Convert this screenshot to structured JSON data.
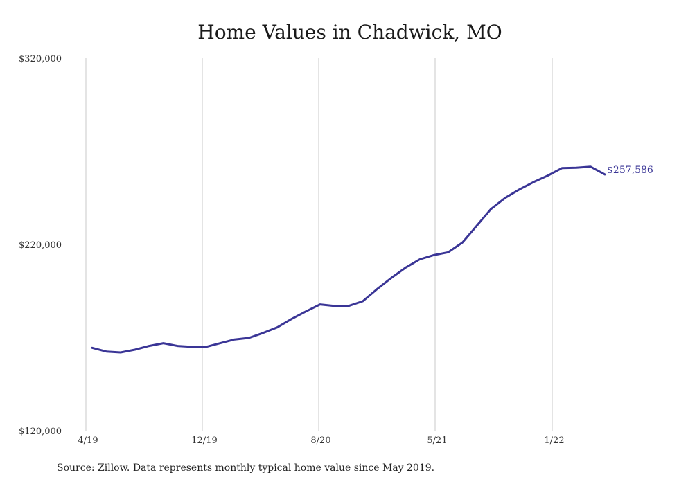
{
  "chart_data": {
    "type": "line",
    "title": "Home Values in Chadwick, MO",
    "xlabel": "",
    "ylabel": "",
    "ylim": [
      120000,
      320000
    ],
    "y_ticks": [
      "$120,000",
      "$220,000",
      "$320,000"
    ],
    "y_tick_values": [
      120000,
      220000,
      320000
    ],
    "x_ticks": [
      "4/19",
      "12/19",
      "8/20",
      "5/21",
      "1/22"
    ],
    "grid": "vertical",
    "line_color": "#3a3596",
    "end_label": "$257,586",
    "series": [
      {
        "values": [
          164500,
          162500,
          162000,
          163500,
          165500,
          167000,
          165500,
          165000,
          165000,
          167000,
          169000,
          169800,
          172500,
          175500,
          180000,
          184000,
          187800,
          187000,
          187000,
          189500,
          196000,
          202000,
          207500,
          212000,
          214300,
          215800,
          221000,
          230000,
          239000,
          245000,
          249500,
          253500,
          257000,
          261000,
          261200,
          261700,
          257586
        ]
      }
    ]
  },
  "source_note": "Source: Zillow. Data represents monthly typical home value since May 2019."
}
